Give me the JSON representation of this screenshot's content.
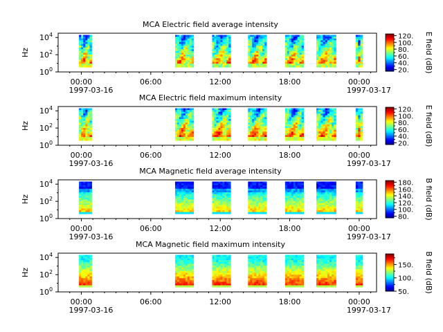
{
  "chart_data": [
    {
      "type": "heatmap",
      "title": "MCA  Electric field average intensity",
      "ylabel": "Hz",
      "colorbar_label": "E field (dB)",
      "colorbar_range": [
        15,
        125
      ],
      "colorbar_ticks": [
        "20.",
        "40.",
        "60.",
        "80.",
        "100.",
        "120."
      ],
      "colorbar_minor": [
        30,
        50,
        70,
        90,
        110
      ],
      "variant": "e_avg",
      "xrange_hours": [
        -2,
        25.5
      ],
      "x_ticks": [
        "00:00",
        "06:00",
        "12:00",
        "18:00",
        "00:00"
      ],
      "x_tick_hours": [
        0,
        6,
        12,
        18,
        24
      ],
      "date_start": "1997-03-16",
      "date_end": "1997-03-17",
      "y_ticks": [
        "10",
        "10",
        "10"
      ],
      "y_tick_exponents": [
        "0",
        "2",
        "4"
      ],
      "y_log_range": [
        0,
        4.5
      ],
      "data_intervals_hours": [
        [
          -0.2,
          0.9
        ],
        [
          8.1,
          9.7
        ],
        [
          11.3,
          12.9
        ],
        [
          14.4,
          16.0
        ],
        [
          17.6,
          19.2
        ],
        [
          20.3,
          22.0
        ],
        [
          23.7,
          24.3
        ]
      ]
    },
    {
      "type": "heatmap",
      "title": "MCA  Electric field maximum intensity",
      "ylabel": "Hz",
      "colorbar_label": "E field (dB)",
      "colorbar_range": [
        15,
        125
      ],
      "colorbar_ticks": [
        "20.",
        "40.",
        "60.",
        "80.",
        "100.",
        "120."
      ],
      "colorbar_minor": [
        30,
        50,
        70,
        90,
        110
      ],
      "variant": "e_max",
      "xrange_hours": [
        -2,
        25.5
      ],
      "x_ticks": [
        "00:00",
        "06:00",
        "12:00",
        "18:00",
        "00:00"
      ],
      "x_tick_hours": [
        0,
        6,
        12,
        18,
        24
      ],
      "date_start": "1997-03-16",
      "date_end": "1997-03-17",
      "y_ticks": [
        "10",
        "10",
        "10"
      ],
      "y_tick_exponents": [
        "0",
        "2",
        "4"
      ],
      "y_log_range": [
        0,
        4.5
      ],
      "data_intervals_hours": [
        [
          -0.2,
          0.9
        ],
        [
          8.1,
          9.7
        ],
        [
          11.3,
          12.9
        ],
        [
          14.4,
          16.0
        ],
        [
          17.6,
          19.2
        ],
        [
          20.3,
          22.0
        ],
        [
          23.7,
          24.3
        ]
      ]
    },
    {
      "type": "heatmap",
      "title": "MCA  Magnetic field average intensity",
      "ylabel": "Hz",
      "colorbar_label": "B field (dB)",
      "colorbar_range": [
        75,
        185
      ],
      "colorbar_ticks": [
        "80.",
        "100.",
        "120.",
        "140.",
        "160.",
        "180."
      ],
      "colorbar_minor": [
        90,
        110,
        130,
        150,
        170
      ],
      "variant": "b_avg",
      "xrange_hours": [
        -2,
        25.5
      ],
      "x_ticks": [
        "00:00",
        "06:00",
        "12:00",
        "18:00",
        "00:00"
      ],
      "x_tick_hours": [
        0,
        6,
        12,
        18,
        24
      ],
      "date_start": "1997-03-16",
      "date_end": "1997-03-17",
      "y_ticks": [
        "10",
        "10",
        "10"
      ],
      "y_tick_exponents": [
        "0",
        "2",
        "4"
      ],
      "y_log_range": [
        0,
        4.5
      ],
      "data_intervals_hours": [
        [
          -0.2,
          0.9
        ],
        [
          8.1,
          9.7
        ],
        [
          11.3,
          12.9
        ],
        [
          14.4,
          16.0
        ],
        [
          17.6,
          19.2
        ],
        [
          20.3,
          22.0
        ],
        [
          23.7,
          24.3
        ]
      ]
    },
    {
      "type": "heatmap",
      "title": "MCA  Magnetic field maximum intensity",
      "ylabel": "Hz",
      "colorbar_label": "B field (dB)",
      "colorbar_range": [
        50,
        190
      ],
      "colorbar_ticks": [
        "50.",
        "100.",
        "150."
      ],
      "colorbar_minor": [
        75,
        125,
        175
      ],
      "variant": "b_max",
      "xrange_hours": [
        -2,
        25.5
      ],
      "x_ticks": [
        "00:00",
        "06:00",
        "12:00",
        "18:00",
        "00:00"
      ],
      "x_tick_hours": [
        0,
        6,
        12,
        18,
        24
      ],
      "date_start": "1997-03-16",
      "date_end": "1997-03-17",
      "y_ticks": [
        "10",
        "10",
        "10"
      ],
      "y_tick_exponents": [
        "0",
        "2",
        "4"
      ],
      "y_log_range": [
        0,
        4.5
      ],
      "data_intervals_hours": [
        [
          -0.2,
          0.9
        ],
        [
          8.1,
          9.7
        ],
        [
          11.3,
          12.9
        ],
        [
          14.4,
          16.0
        ],
        [
          17.6,
          19.2
        ],
        [
          20.3,
          22.0
        ],
        [
          23.7,
          24.3
        ]
      ]
    }
  ]
}
